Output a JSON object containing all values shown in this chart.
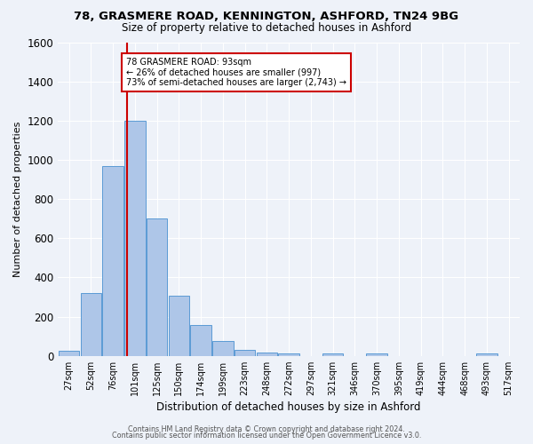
{
  "title1": "78, GRASMERE ROAD, KENNINGTON, ASHFORD, TN24 9BG",
  "title2": "Size of property relative to detached houses in Ashford",
  "xlabel": "Distribution of detached houses by size in Ashford",
  "ylabel": "Number of detached properties",
  "bar_labels": [
    "27sqm",
    "52sqm",
    "76sqm",
    "101sqm",
    "125sqm",
    "150sqm",
    "174sqm",
    "199sqm",
    "223sqm",
    "248sqm",
    "272sqm",
    "297sqm",
    "321sqm",
    "346sqm",
    "370sqm",
    "395sqm",
    "419sqm",
    "444sqm",
    "468sqm",
    "493sqm",
    "517sqm"
  ],
  "bar_values": [
    25,
    320,
    970,
    1200,
    700,
    305,
    155,
    75,
    30,
    18,
    12,
    0,
    10,
    0,
    13,
    0,
    0,
    0,
    0,
    12,
    0
  ],
  "bar_color": "#aec6e8",
  "bar_edge_color": "#5b9bd5",
  "bg_color": "#eef2f9",
  "grid_color": "#ffffff",
  "vline_x_idx": 3,
  "vline_color": "#cc0000",
  "annotation_line1": "78 GRASMERE ROAD: 93sqm",
  "annotation_line2": "← 26% of detached houses are smaller (997)",
  "annotation_line3": "73% of semi-detached houses are larger (2,743) →",
  "annotation_box_color": "#ffffff",
  "annotation_box_edge": "#cc0000",
  "footer1": "Contains HM Land Registry data © Crown copyright and database right 2024.",
  "footer2": "Contains public sector information licensed under the Open Government Licence v3.0.",
  "ylim": [
    0,
    1600
  ],
  "n_bars": 21
}
